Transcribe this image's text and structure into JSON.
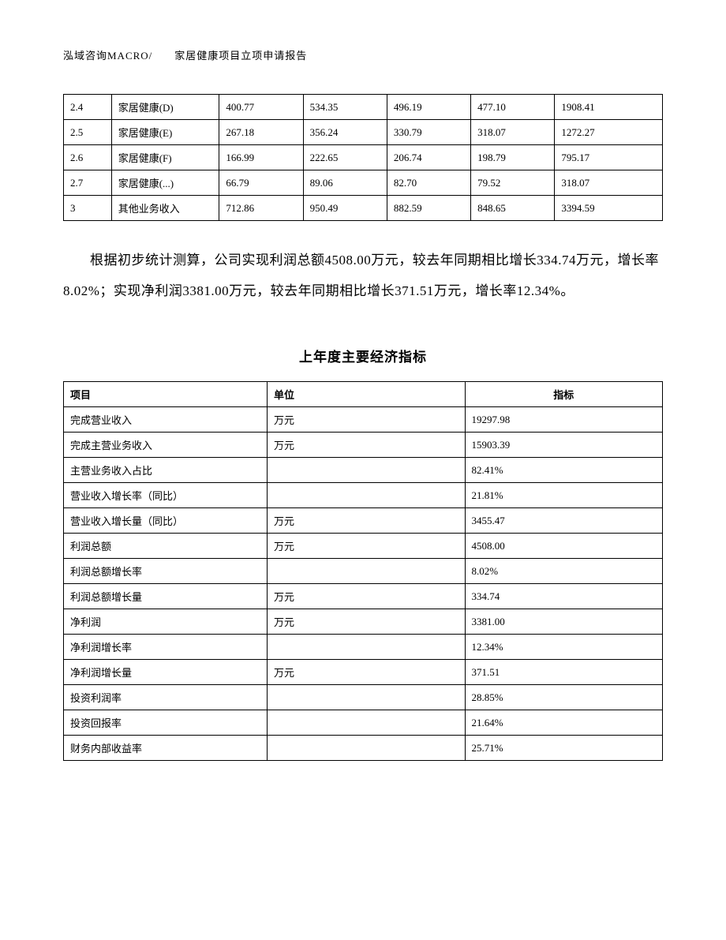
{
  "header": {
    "text": "泓域咨询MACRO/　　家居健康项目立项申请报告"
  },
  "table1": {
    "rows": [
      [
        "2.4",
        "家居健康(D)",
        "400.77",
        "534.35",
        "496.19",
        "477.10",
        "1908.41"
      ],
      [
        "2.5",
        "家居健康(E)",
        "267.18",
        "356.24",
        "330.79",
        "318.07",
        "1272.27"
      ],
      [
        "2.6",
        "家居健康(F)",
        "166.99",
        "222.65",
        "206.74",
        "198.79",
        "795.17"
      ],
      [
        "2.7",
        "家居健康(...)",
        "66.79",
        "89.06",
        "82.70",
        "79.52",
        "318.07"
      ],
      [
        "3",
        "其他业务收入",
        "712.86",
        "950.49",
        "882.59",
        "848.65",
        "3394.59"
      ]
    ]
  },
  "paragraph": {
    "text": "根据初步统计测算，公司实现利润总额4508.00万元，较去年同期相比增长334.74万元，增长率8.02%；实现净利润3381.00万元，较去年同期相比增长371.51万元，增长率12.34%。"
  },
  "section_title": "上年度主要经济指标",
  "table2": {
    "headers": [
      "项目",
      "单位",
      "指标"
    ],
    "rows": [
      [
        "完成营业收入",
        "万元",
        "19297.98"
      ],
      [
        "完成主营业务收入",
        "万元",
        "15903.39"
      ],
      [
        "主营业务收入占比",
        "",
        "82.41%"
      ],
      [
        "营业收入增长率（同比）",
        "",
        "21.81%"
      ],
      [
        "营业收入增长量（同比）",
        "万元",
        "3455.47"
      ],
      [
        "利润总额",
        "万元",
        "4508.00"
      ],
      [
        "利润总额增长率",
        "",
        "8.02%"
      ],
      [
        "利润总额增长量",
        "万元",
        "334.74"
      ],
      [
        "净利润",
        "万元",
        "3381.00"
      ],
      [
        "净利润增长率",
        "",
        "12.34%"
      ],
      [
        "净利润增长量",
        "万元",
        "371.51"
      ],
      [
        "投资利润率",
        "",
        "28.85%"
      ],
      [
        "投资回报率",
        "",
        "21.64%"
      ],
      [
        "财务内部收益率",
        "",
        "25.71%"
      ]
    ]
  }
}
